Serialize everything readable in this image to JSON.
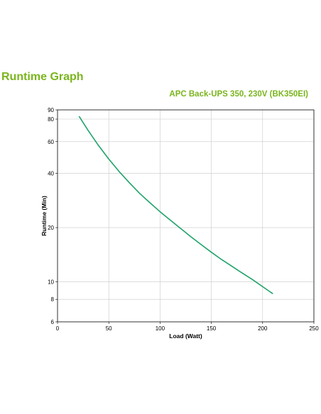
{
  "page": {
    "title": "Runtime Graph"
  },
  "chart_data": {
    "type": "line",
    "title": "APC Back-UPS 350, 230V (BK350EI)",
    "xlabel": "Load (Watt)",
    "ylabel": "Runtime (Min)",
    "xlim": [
      0,
      250
    ],
    "ylim": [
      6,
      90
    ],
    "yscale": "log",
    "grid": true,
    "xticks": [
      0,
      50,
      100,
      150,
      200,
      250
    ],
    "yticks": [
      6,
      8,
      10,
      20,
      40,
      60,
      80,
      90
    ],
    "colors": {
      "line": "#1fa36a",
      "grid": "#c8c8c8",
      "title": "#7ab51d"
    },
    "series": [
      {
        "x": [
          21,
          30,
          40,
          50,
          60,
          70,
          80,
          90,
          100,
          110,
          120,
          130,
          140,
          150,
          160,
          170,
          180,
          190,
          200,
          210
        ],
        "y": [
          83,
          69,
          57,
          48,
          41,
          35.5,
          31,
          27.5,
          24.5,
          22,
          19.8,
          17.8,
          16.1,
          14.6,
          13.3,
          12.2,
          11.2,
          10.3,
          9.4,
          8.6
        ]
      }
    ]
  }
}
